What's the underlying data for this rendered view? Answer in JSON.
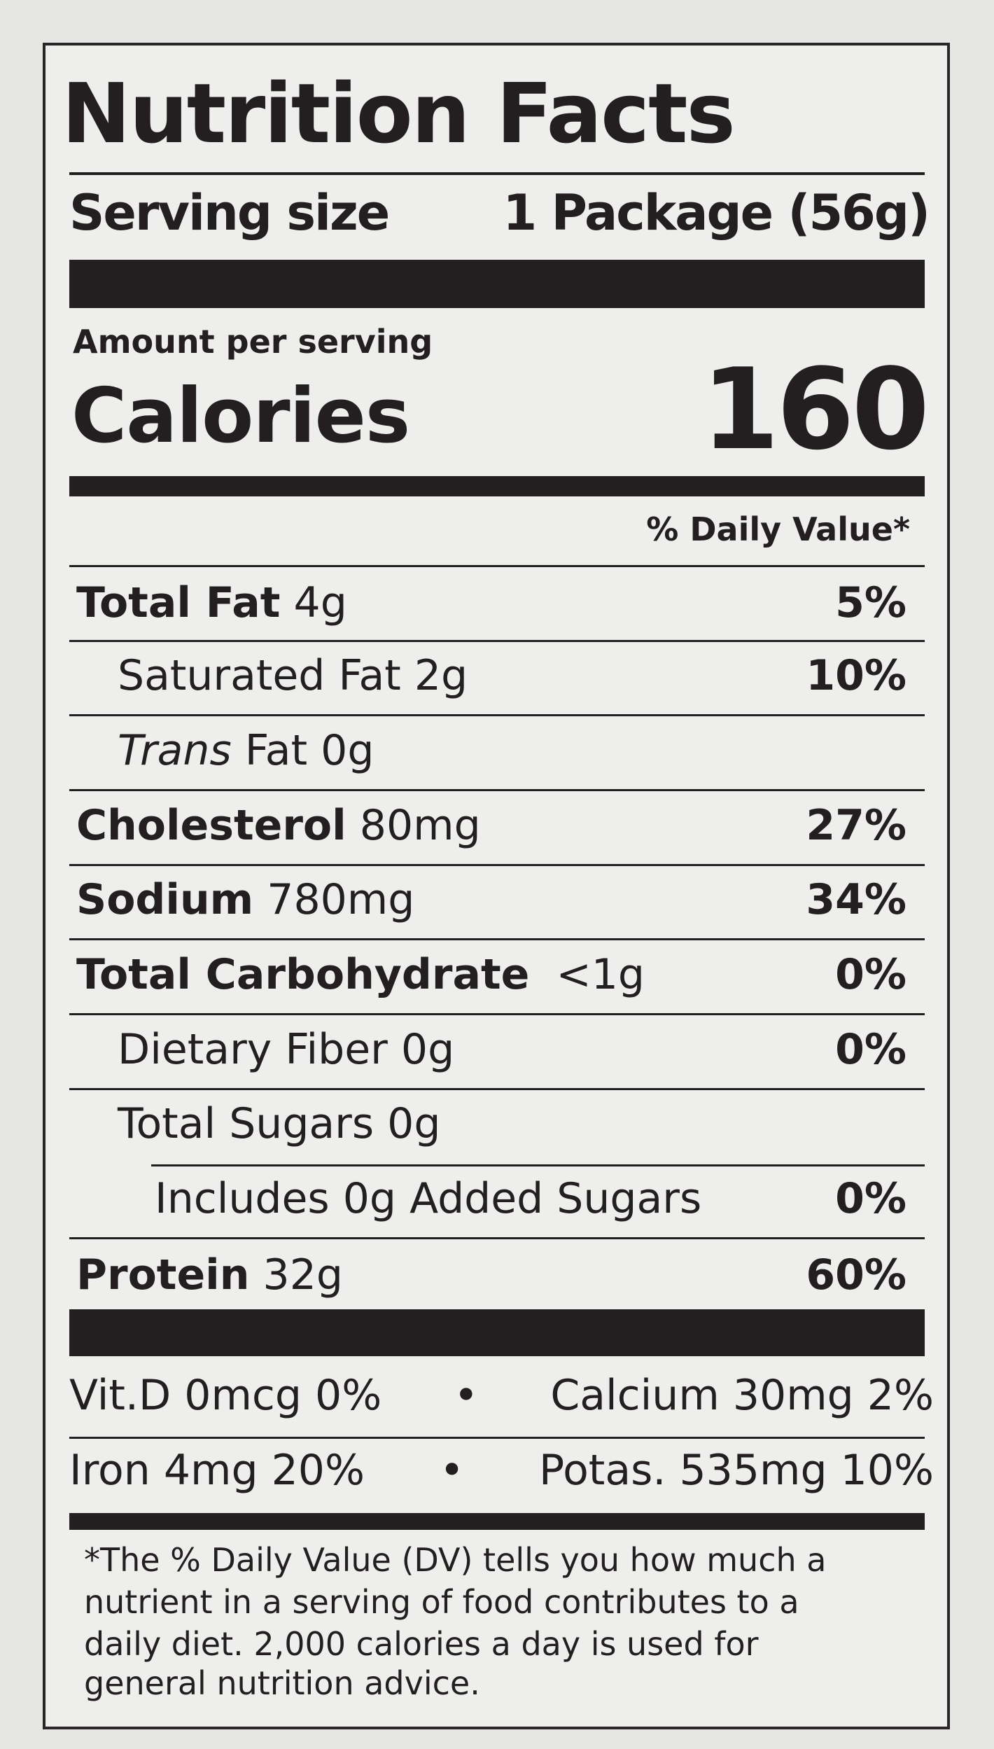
{
  "header": {
    "title": "Nutrition Facts",
    "serving_size_label": "Serving size",
    "serving_size": "1 Package (56g)",
    "amount_per_serving": "Amount per serving",
    "calories_label": "Calories",
    "calories": "160",
    "daily_value_header": "% Daily Value*"
  },
  "nutrients": [
    {
      "name": "Total Fat",
      "amount": "4g",
      "dv": "5%"
    },
    {
      "name": "Saturated Fat",
      "amount": "2g",
      "dv": "10%"
    },
    {
      "name_italic": "Trans",
      "name": "Fat",
      "amount": "0g"
    },
    {
      "name": "Cholesterol",
      "amount": "80mg",
      "dv": "27%"
    },
    {
      "name": "Sodium",
      "amount": "780mg",
      "dv": "34%"
    },
    {
      "name": "Total Carbohydrate",
      "amount": "<1g",
      "dv": "0%"
    },
    {
      "name": "Dietary Fiber",
      "amount": "0g",
      "dv": "0%"
    },
    {
      "name": "Total Sugars",
      "amount": "0g"
    },
    {
      "name": "Includes 0g Added Sugars",
      "dv": "0%"
    },
    {
      "name": "Protein",
      "amount": "32g",
      "dv": "60%"
    }
  ],
  "minerals": {
    "bullet": "•",
    "rows": [
      [
        "Vit.D 0mcg 0%",
        "Calcium 30mg 2%"
      ],
      [
        "Iron 4mg 20%",
        "Potas. 535mg 10%"
      ]
    ]
  },
  "footnote": [
    "*The % Daily Value (DV) tells you how much a",
    "nutrient in a serving of food contributes to a",
    "daily diet. 2,000 calories a day is used for",
    "general nutrition advice."
  ]
}
